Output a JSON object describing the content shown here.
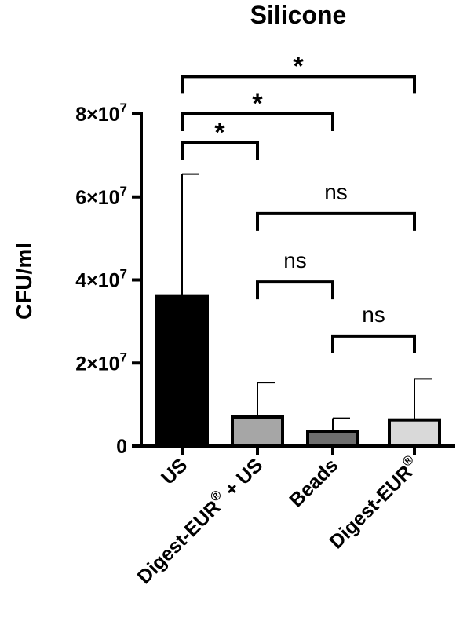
{
  "chart_data": {
    "type": "bar",
    "title": "Silicone",
    "ylabel": "CFU/ml",
    "xlabel": "",
    "ylim": [
      0,
      80000000
    ],
    "yticks": [
      {
        "value": 0,
        "label": "0"
      },
      {
        "value": 20000000,
        "label": "2×10",
        "exp": "7"
      },
      {
        "value": 40000000,
        "label": "4×10",
        "exp": "7"
      },
      {
        "value": 60000000,
        "label": "6×10",
        "exp": "7"
      },
      {
        "value": 80000000,
        "label": "8×10",
        "exp": "7"
      }
    ],
    "categories": [
      {
        "label": "US",
        "sup": ""
      },
      {
        "label": "Digest-EUR",
        "sup": "®",
        "suffix": " + US"
      },
      {
        "label": "Beads",
        "sup": ""
      },
      {
        "label": "Digest-EUR",
        "sup": "®"
      }
    ],
    "values": [
      36000000,
      7000000,
      3500000,
      6300000
    ],
    "errors": [
      29500000,
      8300000,
      3200000,
      9900000
    ],
    "colors": [
      "#000000",
      "#a6a6a6",
      "#6e6e6e",
      "#d9d9d9"
    ],
    "comparisons": [
      {
        "from": 0,
        "to": 1,
        "label": "*",
        "level": 73000000
      },
      {
        "from": 0,
        "to": 2,
        "label": "*",
        "level": 80000000
      },
      {
        "from": 0,
        "to": 3,
        "label": "*",
        "level": 89000000
      },
      {
        "from": 1,
        "to": 3,
        "label": "ns",
        "level": 56000000
      },
      {
        "from": 1,
        "to": 2,
        "label": "ns",
        "level": 39500000
      },
      {
        "from": 2,
        "to": 3,
        "label": "ns",
        "level": 26500000
      }
    ]
  }
}
